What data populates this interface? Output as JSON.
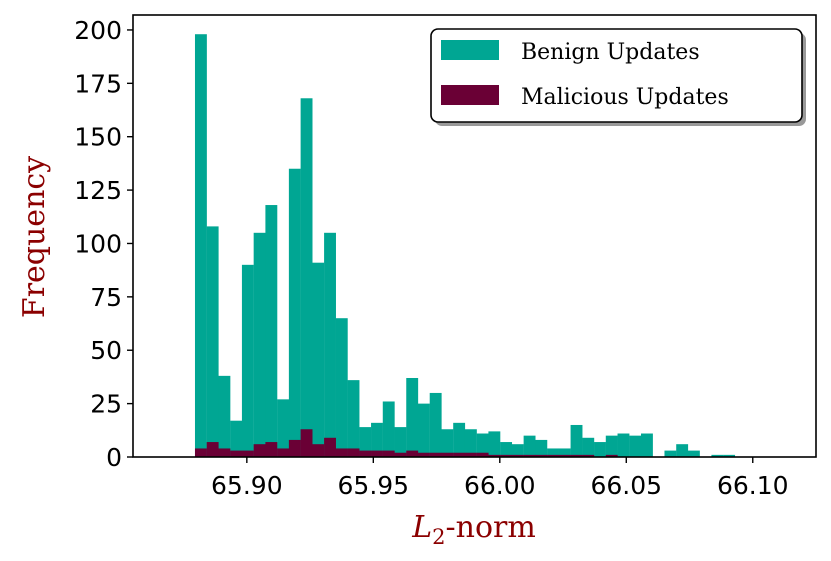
{
  "chart_data": {
    "type": "bar",
    "title": "",
    "xlabel_main": "L",
    "xlabel_sub": "2",
    "xlabel_rest": "-norm",
    "ylabel": "Frequency",
    "xlim": [
      65.855,
      66.125
    ],
    "ylim": [
      0,
      207
    ],
    "bin_start": 65.8795,
    "bin_width": 0.00464,
    "xticks": [
      "65.90",
      "65.95",
      "66.00",
      "66.05",
      "66.10"
    ],
    "xtick_values": [
      65.9,
      65.95,
      66.0,
      66.05,
      66.1
    ],
    "yticks": [
      "0",
      "25",
      "50",
      "75",
      "100",
      "125",
      "150",
      "175",
      "200"
    ],
    "ytick_values": [
      0,
      25,
      50,
      75,
      100,
      125,
      150,
      175,
      200
    ],
    "grid": false,
    "legend_position": "top-right",
    "colors": {
      "benign": "#00a693",
      "malicious": "#6a0035",
      "axis_title": "#8b0000"
    },
    "series": [
      {
        "name": "Benign Updates",
        "values": [
          198,
          108,
          38,
          17,
          90,
          105,
          118,
          27,
          135,
          168,
          91,
          105,
          65,
          36,
          14,
          16,
          26,
          14,
          37,
          25,
          30,
          13,
          16,
          13,
          11,
          12,
          7,
          6,
          10,
          8,
          4,
          4,
          15,
          9,
          7,
          10,
          11,
          10,
          11,
          0,
          3,
          6,
          3,
          0,
          1,
          1
        ]
      },
      {
        "name": "Malicious Updates",
        "values": [
          4,
          7,
          4,
          3,
          3,
          6,
          7,
          4,
          8,
          13,
          6,
          9,
          4,
          4,
          3,
          3,
          3,
          2,
          3,
          2,
          2,
          2,
          2,
          2,
          2,
          1,
          1,
          1,
          1,
          1,
          1,
          1,
          1,
          1,
          0,
          1,
          0,
          0,
          0,
          0,
          0,
          0,
          0,
          0,
          0,
          0
        ]
      }
    ]
  }
}
